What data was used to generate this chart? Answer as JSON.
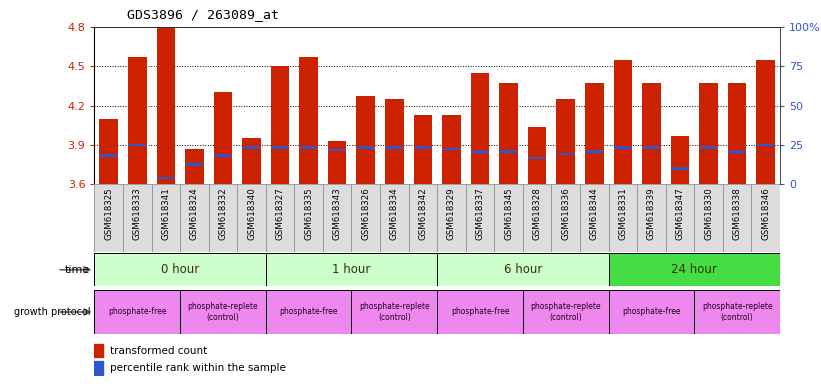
{
  "title": "GDS3896 / 263089_at",
  "samples": [
    "GSM618325",
    "GSM618333",
    "GSM618341",
    "GSM618324",
    "GSM618332",
    "GSM618340",
    "GSM618327",
    "GSM618335",
    "GSM618343",
    "GSM618326",
    "GSM618334",
    "GSM618342",
    "GSM618329",
    "GSM618337",
    "GSM618345",
    "GSM618328",
    "GSM618336",
    "GSM618344",
    "GSM618331",
    "GSM618339",
    "GSM618347",
    "GSM618330",
    "GSM618338",
    "GSM618346"
  ],
  "bar_values": [
    4.1,
    4.57,
    4.79,
    3.87,
    4.3,
    3.95,
    4.5,
    4.57,
    3.93,
    4.27,
    4.25,
    4.13,
    4.13,
    4.45,
    4.37,
    4.04,
    4.25,
    4.37,
    4.55,
    4.37,
    3.97,
    4.37,
    4.37,
    4.55
  ],
  "blue_values": [
    3.82,
    3.9,
    3.65,
    3.75,
    3.82,
    3.88,
    3.88,
    3.88,
    3.86,
    3.88,
    3.88,
    3.88,
    3.87,
    3.85,
    3.85,
    3.8,
    3.83,
    3.85,
    3.88,
    3.88,
    3.72,
    3.88,
    3.85,
    3.9
  ],
  "ymin": 3.6,
  "ymax": 4.8,
  "yticks_left": [
    3.6,
    3.9,
    4.2,
    4.5,
    4.8
  ],
  "right_yticks_pct": [
    0,
    25,
    50,
    75,
    100
  ],
  "right_yticklabels": [
    "0",
    "25",
    "50",
    "75",
    "100%"
  ],
  "bar_color": "#CC2200",
  "blue_color": "#3355CC",
  "tick_label_bg": "#DDDDDD",
  "time_groups": [
    {
      "label": "0 hour",
      "start": 0,
      "end": 6,
      "color": "#CCFFCC"
    },
    {
      "label": "1 hour",
      "start": 6,
      "end": 12,
      "color": "#CCFFCC"
    },
    {
      "label": "6 hour",
      "start": 12,
      "end": 18,
      "color": "#CCFFCC"
    },
    {
      "label": "24 hour",
      "start": 18,
      "end": 24,
      "color": "#44DD44"
    }
  ],
  "protocol_groups": [
    {
      "label": "phosphate-free",
      "start": 0,
      "end": 3,
      "color": "#EE88EE"
    },
    {
      "label": "phosphate-replete\n(control)",
      "start": 3,
      "end": 6,
      "color": "#EE88EE"
    },
    {
      "label": "phosphate-free",
      "start": 6,
      "end": 9,
      "color": "#EE88EE"
    },
    {
      "label": "phosphate-replete\n(control)",
      "start": 9,
      "end": 12,
      "color": "#EE88EE"
    },
    {
      "label": "phosphate-free",
      "start": 12,
      "end": 15,
      "color": "#EE88EE"
    },
    {
      "label": "phosphate-replete\n(control)",
      "start": 15,
      "end": 18,
      "color": "#EE88EE"
    },
    {
      "label": "phosphate-free",
      "start": 18,
      "end": 21,
      "color": "#EE88EE"
    },
    {
      "label": "phosphate-replete\n(control)",
      "start": 21,
      "end": 24,
      "color": "#EE88EE"
    }
  ]
}
